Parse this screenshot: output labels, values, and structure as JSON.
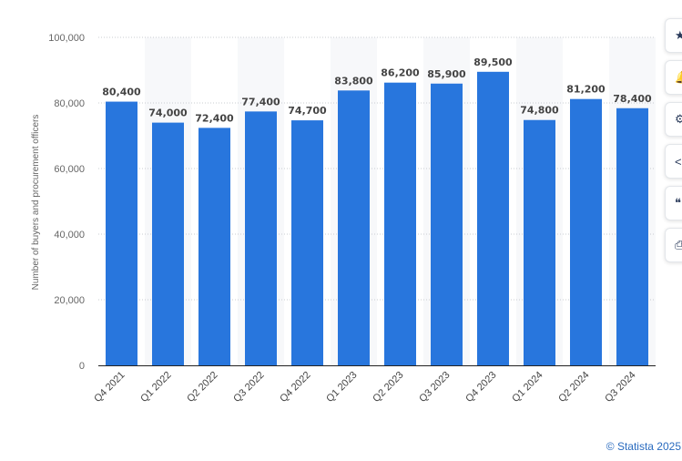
{
  "chart_data": {
    "type": "bar",
    "categories": [
      "Q4 2021",
      "Q1 2022",
      "Q2 2022",
      "Q3 2022",
      "Q4 2022",
      "Q1 2023",
      "Q2 2023",
      "Q3 2023",
      "Q4 2023",
      "Q1 2024",
      "Q2 2024",
      "Q3 2024"
    ],
    "values": [
      80400,
      74000,
      72400,
      77400,
      74700,
      83800,
      86200,
      85900,
      89500,
      74800,
      81200,
      78400
    ],
    "data_labels": [
      "80,400",
      "74,000",
      "72,400",
      "77,400",
      "74,700",
      "83,800",
      "86,200",
      "85,900",
      "89,500",
      "74,800",
      "81,200",
      "78,400"
    ],
    "ylabel": "Number of buyers and procurement officers",
    "ylim": [
      0,
      100000
    ],
    "yticks": [
      0,
      20000,
      40000,
      60000,
      80000,
      100000
    ],
    "ytick_labels": [
      "0",
      "20,000",
      "40,000",
      "60,000",
      "80,000",
      "100,000"
    ],
    "grid": true,
    "bar_color": "#2876dd"
  },
  "toolbar": {
    "buttons": [
      {
        "name": "favorite-button",
        "icon": "star-icon",
        "glyph": "★"
      },
      {
        "name": "notification-button",
        "icon": "bell-icon",
        "glyph": "🔔"
      },
      {
        "name": "settings-button",
        "icon": "gear-icon",
        "glyph": "⚙"
      },
      {
        "name": "share-button",
        "icon": "share-icon",
        "glyph": "<"
      },
      {
        "name": "cite-button",
        "icon": "quote-icon",
        "glyph": "❝"
      },
      {
        "name": "print-button",
        "icon": "printer-icon",
        "glyph": "⎙"
      }
    ]
  },
  "footer": {
    "credit": "© Statista 2025"
  }
}
